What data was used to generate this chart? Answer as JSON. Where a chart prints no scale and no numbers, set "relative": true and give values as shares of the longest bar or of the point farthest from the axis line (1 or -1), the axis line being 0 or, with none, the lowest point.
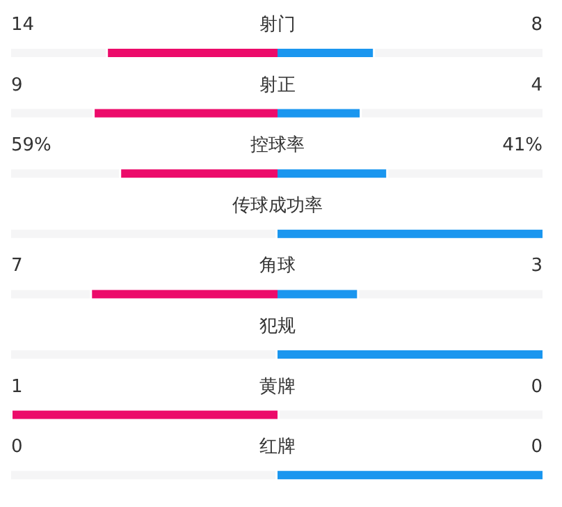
{
  "chart_data": {
    "type": "bar",
    "orientation": "horizontal",
    "relative": true,
    "stacked": true,
    "categories": [
      "射门",
      "射正",
      "控球率",
      "传球成功率",
      "角球",
      "犯规",
      "黄牌",
      "红牌"
    ],
    "series": [
      {
        "color": "#ec0b6a",
        "values": [
          -0.64,
          -0.69,
          -0.59,
          0,
          -0.7,
          0,
          -1,
          0
        ]
      },
      {
        "color": "#1a96ef",
        "values": [
          0.36,
          0.31,
          0.41,
          1,
          0.3,
          1,
          0,
          1
        ]
      }
    ],
    "annotations": [
      "14",
      "8",
      "9",
      "4",
      "59%",
      "41%",
      null,
      null,
      "7",
      "3",
      null,
      null,
      "1",
      "0",
      "0",
      "0"
    ]
  }
}
